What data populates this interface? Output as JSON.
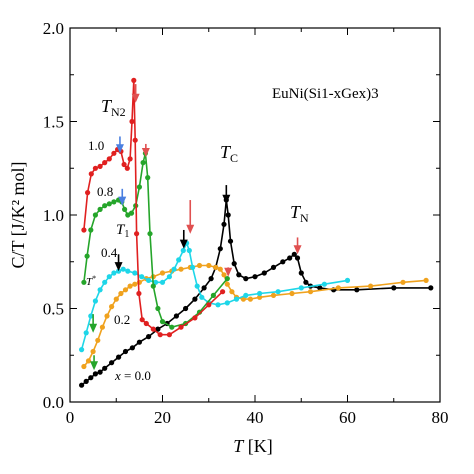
{
  "chart_data": {
    "type": "line",
    "title": "",
    "xlabel": "T [K]",
    "ylabel": "C/T [J/K² mol]",
    "xlim": [
      0,
      80
    ],
    "ylim": [
      0.0,
      2.0
    ],
    "x_ticks": [
      0,
      20,
      40,
      60,
      80
    ],
    "y_ticks": [
      "0.0",
      "0.5",
      "1.0",
      "1.5",
      "2.0"
    ],
    "grid": false,
    "legend": "none",
    "inset_label": "EuNi(Si1-xGex)3",
    "series": [
      {
        "name": "x = 0.0",
        "color": "#000000",
        "x": [
          2.5,
          3.5,
          4.5,
          5.5,
          6.5,
          7.5,
          9,
          10.5,
          12,
          13.5,
          15,
          17,
          19,
          21,
          23,
          25,
          27,
          29,
          30.5,
          31.5,
          32.5,
          33.3,
          33.8,
          34.2,
          34.7,
          35.5,
          36.5,
          38,
          40,
          42,
          44,
          46,
          47.5,
          48.5,
          49.2,
          50,
          51,
          52,
          54,
          57,
          62,
          70,
          78
        ],
        "y": [
          0.09,
          0.11,
          0.13,
          0.15,
          0.16,
          0.18,
          0.21,
          0.24,
          0.27,
          0.29,
          0.32,
          0.35,
          0.39,
          0.42,
          0.46,
          0.5,
          0.55,
          0.61,
          0.66,
          0.72,
          0.82,
          0.95,
          1.08,
          1.0,
          0.86,
          0.74,
          0.68,
          0.66,
          0.67,
          0.69,
          0.72,
          0.75,
          0.77,
          0.79,
          0.77,
          0.69,
          0.64,
          0.62,
          0.61,
          0.6,
          0.6,
          0.61,
          0.61
        ]
      },
      {
        "name": "0.2",
        "color": "#f0a21e",
        "x": [
          3,
          4,
          5,
          6,
          7,
          8,
          9,
          10,
          11,
          12,
          13,
          14,
          15,
          16.5,
          18,
          20,
          22,
          24,
          26,
          28,
          30,
          31.5,
          32.5,
          33.3,
          34,
          35,
          36,
          37.5,
          39,
          41,
          44,
          48,
          52,
          58,
          65,
          72,
          77
        ],
        "y": [
          0.19,
          0.22,
          0.27,
          0.33,
          0.4,
          0.46,
          0.51,
          0.55,
          0.58,
          0.6,
          0.62,
          0.63,
          0.64,
          0.66,
          0.67,
          0.69,
          0.7,
          0.71,
          0.72,
          0.73,
          0.73,
          0.72,
          0.71,
          0.68,
          0.63,
          0.59,
          0.56,
          0.55,
          0.55,
          0.56,
          0.57,
          0.58,
          0.59,
          0.61,
          0.62,
          0.64,
          0.65
        ]
      },
      {
        "name": "0.4",
        "color": "#1ed6e8",
        "x": [
          2.5,
          3.5,
          4.5,
          5.5,
          6.5,
          7.5,
          8.5,
          9.5,
          10.5,
          11.5,
          12.5,
          14,
          15.5,
          17,
          18.5,
          20,
          21.5,
          22.5,
          23.5,
          24.5,
          25.2,
          25.8,
          26.5,
          27.5,
          28.5,
          30,
          32,
          34,
          36,
          38,
          41,
          45,
          50,
          55,
          60
        ],
        "y": [
          0.28,
          0.37,
          0.46,
          0.54,
          0.6,
          0.64,
          0.67,
          0.69,
          0.7,
          0.71,
          0.7,
          0.69,
          0.67,
          0.65,
          0.64,
          0.64,
          0.67,
          0.71,
          0.76,
          0.81,
          0.85,
          0.81,
          0.72,
          0.62,
          0.56,
          0.53,
          0.52,
          0.53,
          0.55,
          0.57,
          0.58,
          0.59,
          0.61,
          0.63,
          0.65
        ]
      },
      {
        "name": "0.8",
        "color": "#25a52a",
        "x": [
          3,
          3.7,
          4.5,
          5.5,
          6.5,
          7.5,
          8.5,
          9.5,
          10.5,
          11.2,
          11.8,
          12.5,
          13.3,
          14.2,
          15,
          15.8,
          16.3,
          16.8,
          17.3,
          18,
          19,
          20,
          22,
          25,
          28,
          31,
          34
        ],
        "y": [
          0.64,
          0.78,
          0.92,
          1.0,
          1.03,
          1.05,
          1.06,
          1.07,
          1.08,
          1.07,
          1.03,
          1.0,
          1.01,
          1.05,
          1.15,
          1.28,
          1.33,
          1.2,
          0.9,
          0.62,
          0.5,
          0.43,
          0.4,
          0.42,
          0.48,
          0.57,
          0.66
        ]
      },
      {
        "name": "1.0",
        "color": "#e02020",
        "x": [
          3,
          3.8,
          4.6,
          5.5,
          6.5,
          7.5,
          8.5,
          9.5,
          10.3,
          11,
          11.7,
          12.4,
          13,
          13.4,
          13.8,
          14.1,
          14.4,
          14.9,
          15.6,
          16.5,
          18,
          19.5,
          21.5,
          24,
          27,
          30,
          33
        ],
        "y": [
          0.92,
          1.12,
          1.22,
          1.25,
          1.26,
          1.28,
          1.3,
          1.33,
          1.35,
          1.34,
          1.27,
          1.25,
          1.3,
          1.5,
          1.72,
          1.4,
          0.9,
          0.58,
          0.44,
          0.42,
          0.39,
          0.36,
          0.36,
          0.4,
          0.45,
          0.52,
          0.59
        ]
      }
    ],
    "annotations": {
      "tn2": "T",
      "tn2_sub": "N2",
      "tc": "T",
      "tc_sub": "C",
      "tn": "T",
      "tn_sub": "N",
      "t1": "T",
      "t1_sub": "1",
      "tstar": "T",
      "tstar_sup": "*",
      "x_prefix": "x"
    },
    "arrows": [
      {
        "x": 14.2,
        "y_from": 1.7,
        "y_to": 1.6,
        "color": "#e05050"
      },
      {
        "x": 10.8,
        "y_from": 1.42,
        "y_to": 1.33,
        "color": "#4a7fe0"
      },
      {
        "x": 11.3,
        "y_from": 1.14,
        "y_to": 1.05,
        "color": "#4a7fe0"
      },
      {
        "x": 16.4,
        "y_from": 1.38,
        "y_to": 1.31,
        "color": "#e05050"
      },
      {
        "x": 26,
        "y_from": 1.08,
        "y_to": 0.9,
        "color": "#e05050"
      },
      {
        "x": 24.6,
        "y_from": 0.92,
        "y_to": 0.82,
        "color": "#000000"
      },
      {
        "x": 10.5,
        "y_from": 0.79,
        "y_to": 0.7,
        "color": "#000000"
      },
      {
        "x": 33.8,
        "y_from": 1.16,
        "y_to": 1.06,
        "color": "#000000"
      },
      {
        "x": 34.2,
        "y_from": 0.72,
        "y_to": 0.67,
        "color": "#e05050"
      },
      {
        "x": 49.2,
        "y_from": 0.88,
        "y_to": 0.79,
        "color": "#e05050"
      },
      {
        "x": 5,
        "y_from": 0.47,
        "y_to": 0.37,
        "color": "#25a52a"
      },
      {
        "x": 5.2,
        "y_from": 0.25,
        "y_to": 0.17,
        "color": "#25a52a"
      }
    ]
  }
}
